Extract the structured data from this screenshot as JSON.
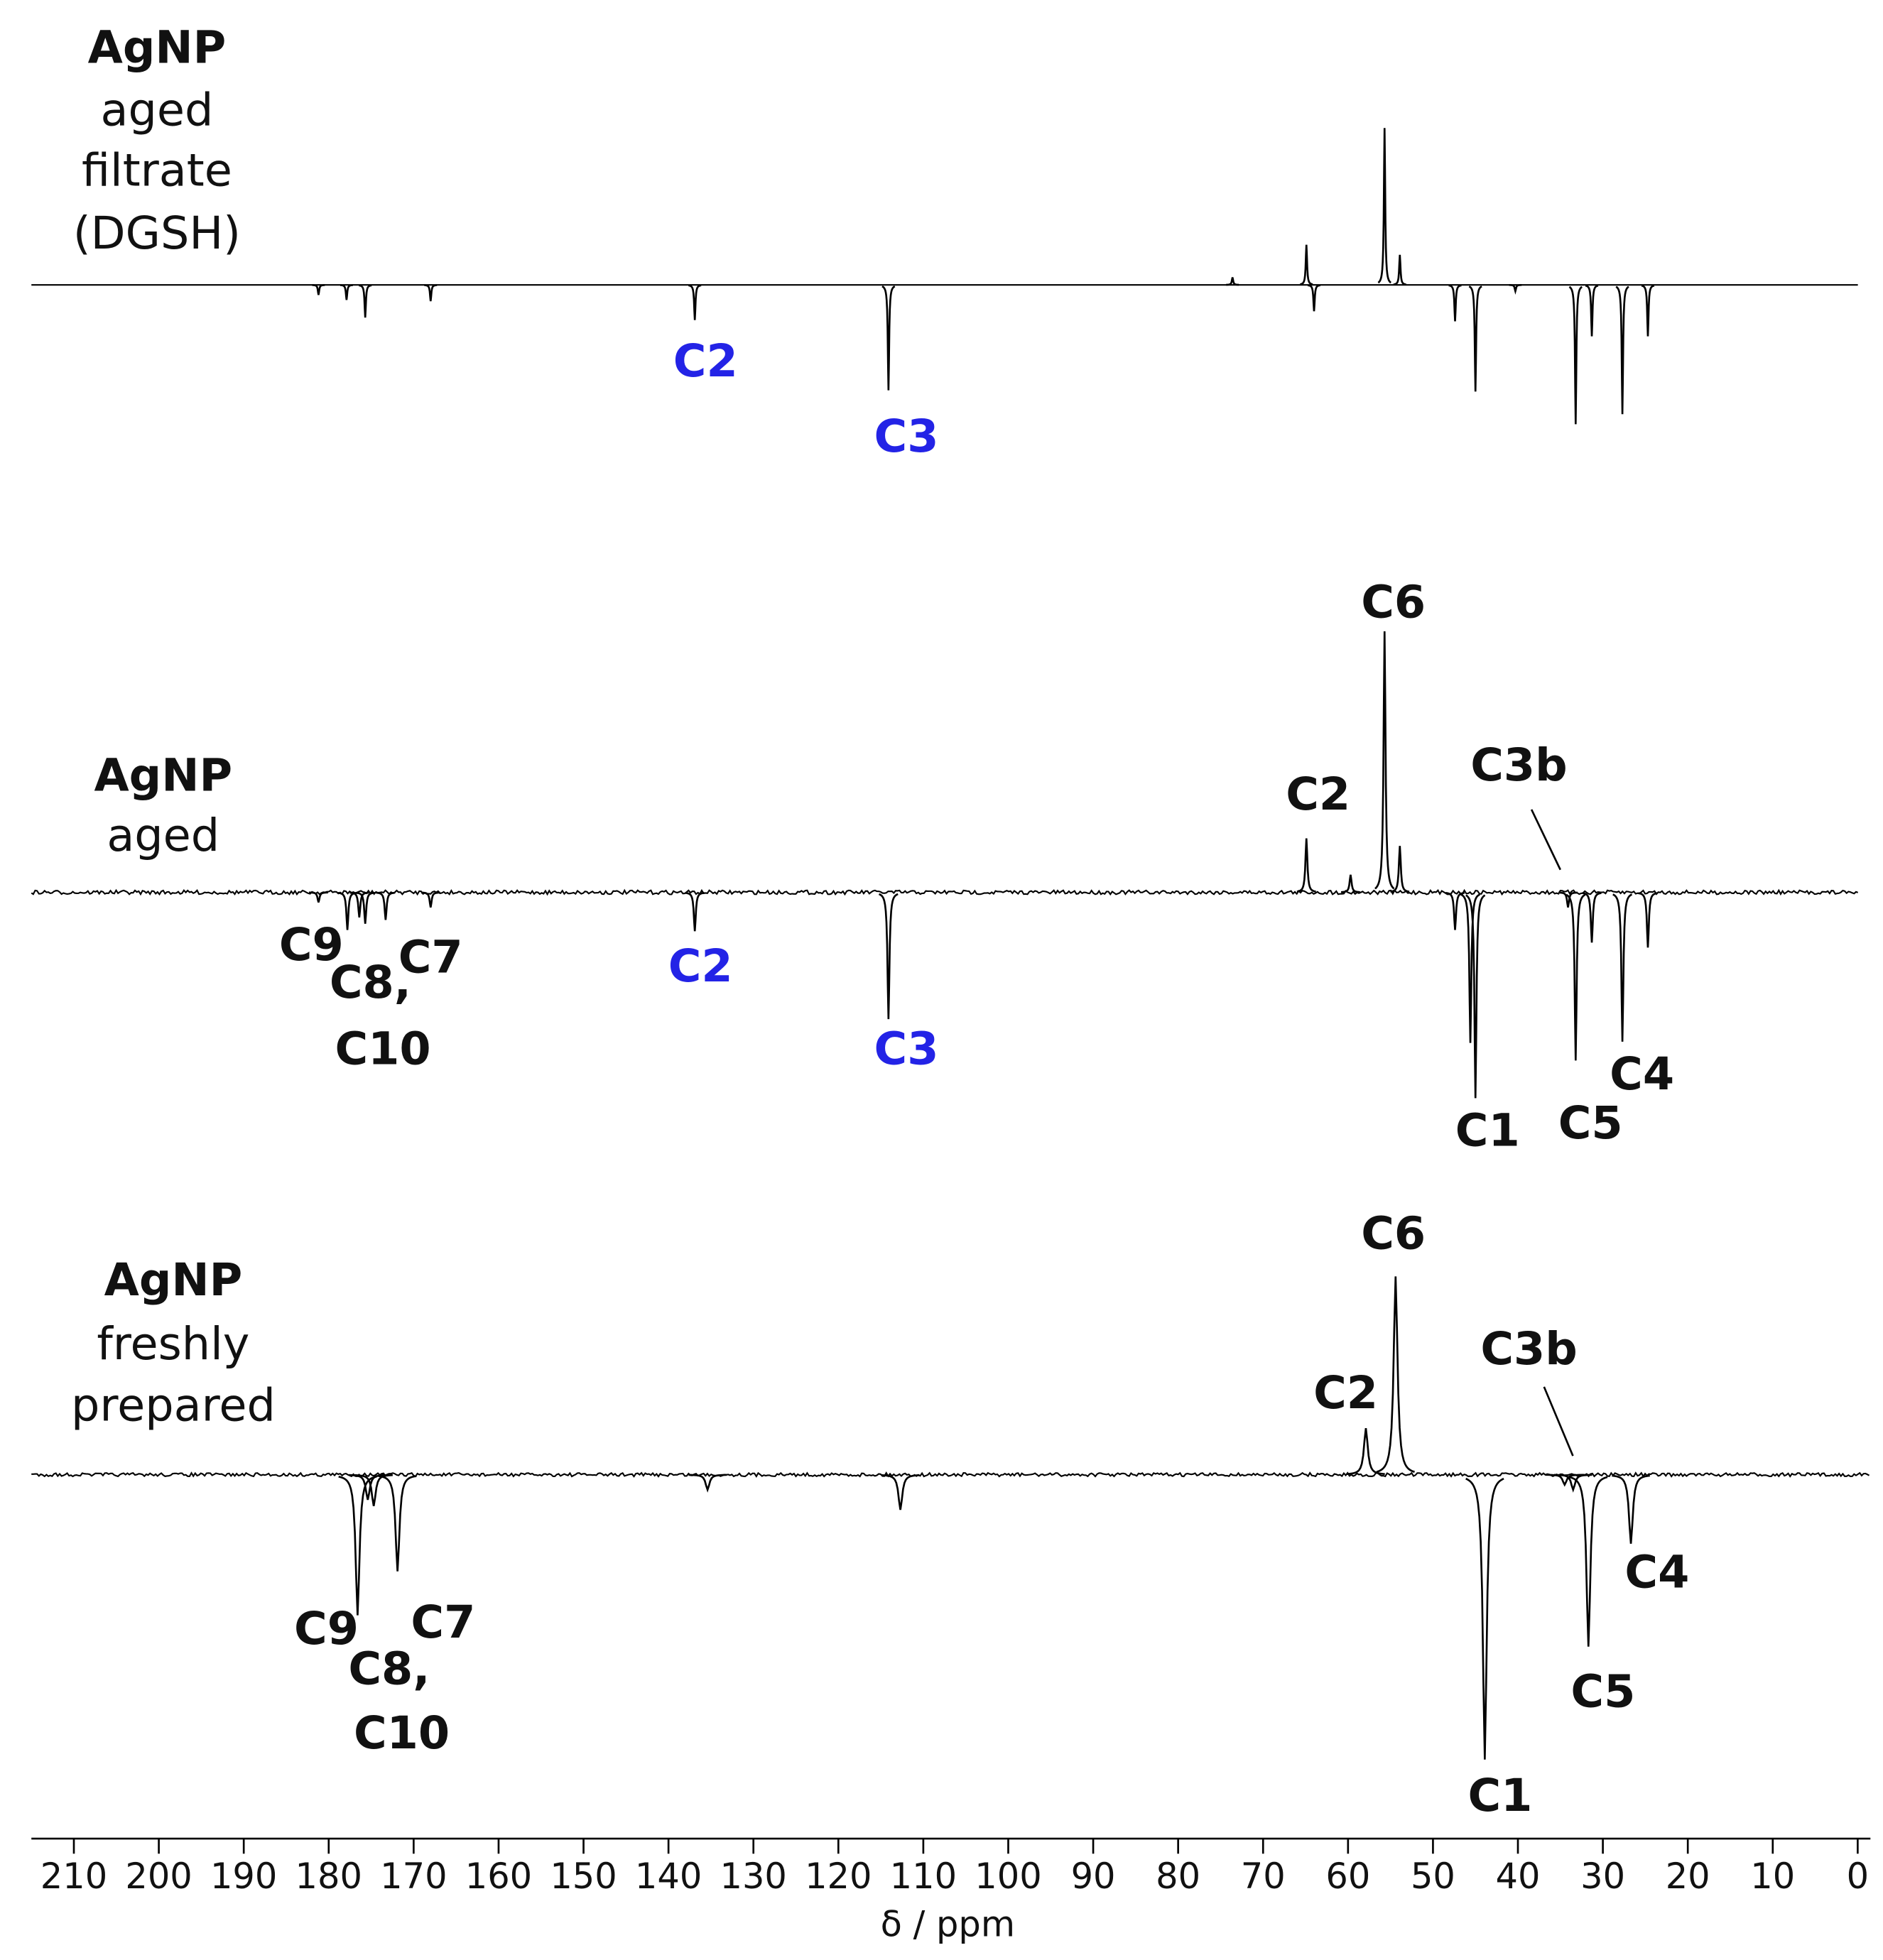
{
  "chart_data": {
    "type": "spectrum",
    "xlabel": "δ / ppm",
    "xlim": [
      215,
      -1.5
    ],
    "xticks": [
      210,
      200,
      190,
      180,
      170,
      160,
      150,
      140,
      130,
      120,
      110,
      100,
      90,
      80,
      70,
      60,
      50,
      40,
      30,
      20,
      10,
      0
    ],
    "color": "#000000",
    "spectra": [
      {
        "name": [
          "AgNP",
          "aged",
          "filtrate",
          "(DGSH)"
        ],
        "x": [
          55.7,
          53.9,
          64.9,
          73.6,
          64.0,
          136.9,
          114.1,
          45.0,
          47.4,
          33.2,
          31.3,
          27.7,
          24.7,
          175.7,
          177.9,
          181.2,
          168.0,
          40.3
        ],
        "values": [
          125,
          24,
          32,
          6,
          -21,
          -28,
          -84,
          -85,
          -29,
          -111,
          -41,
          -103,
          -41,
          -26,
          -12,
          -8,
          -13,
          -5
        ],
        "labels": [
          {
            "text": "C2",
            "color": "#2323e6"
          },
          {
            "text": "C3",
            "color": "#2323e6"
          }
        ]
      },
      {
        "name": [
          "AgNP",
          "aged"
        ],
        "x": [
          55.7,
          53.9,
          64.9,
          59.7,
          136.9,
          114.1,
          45.0,
          45.6,
          47.4,
          33.2,
          34.1,
          31.3,
          27.7,
          24.7,
          177.8,
          176.4,
          175.7,
          173.3,
          168.0,
          181.2
        ],
        "values": [
          208,
          37,
          43,
          14,
          -31,
          -101,
          -164,
          -120,
          -30,
          -134,
          -12,
          -40,
          -119,
          -44,
          -30,
          -20,
          -25,
          -22,
          -12,
          -8
        ],
        "labels": [
          {
            "text": "C6",
            "color": "#111111"
          },
          {
            "text": "C2",
            "color": "#111111"
          },
          {
            "text": "C3b",
            "color": "#111111"
          },
          {
            "text": "C9",
            "color": "#111111"
          },
          {
            "text": "C8,",
            "color": "#111111"
          },
          {
            "text": "C10",
            "color": "#111111"
          },
          {
            "text": "C7",
            "color": "#111111"
          },
          {
            "text": "C2",
            "color": "#2323e6"
          },
          {
            "text": "C3",
            "color": "#2323e6"
          },
          {
            "text": "C1",
            "color": "#111111"
          },
          {
            "text": "C5",
            "color": "#111111"
          },
          {
            "text": "C4",
            "color": "#111111"
          }
        ]
      },
      {
        "name": [
          "AgNP",
          "freshly",
          "prepared"
        ],
        "x": [
          54.4,
          57.9,
          43.9,
          31.7,
          26.7,
          33.5,
          34.5,
          176.6,
          174.7,
          175.4,
          171.9,
          135.4,
          112.7
        ],
        "values": [
          158,
          37,
          -227,
          -137,
          -55,
          -12,
          -8,
          -112,
          -25,
          -20,
          -77,
          -12,
          -28
        ],
        "labels": [
          {
            "text": "C6",
            "color": "#111111"
          },
          {
            "text": "C2",
            "color": "#111111"
          },
          {
            "text": "C3b",
            "color": "#111111"
          },
          {
            "text": "C9",
            "color": "#111111"
          },
          {
            "text": "C8,",
            "color": "#111111"
          },
          {
            "text": "C10",
            "color": "#111111"
          },
          {
            "text": "C7",
            "color": "#111111"
          },
          {
            "text": "C5",
            "color": "#111111"
          },
          {
            "text": "C4",
            "color": "#111111"
          },
          {
            "text": "C1",
            "color": "#111111"
          }
        ]
      }
    ]
  }
}
